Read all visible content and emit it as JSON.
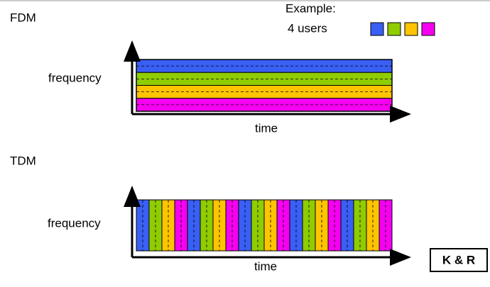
{
  "fdm": {
    "title": "FDM",
    "y_label": "frequency",
    "x_label": "time"
  },
  "tdm": {
    "title": "TDM",
    "y_label": "frequency",
    "x_label": "time"
  },
  "example": {
    "title": "Example:",
    "subtitle": "4 users",
    "colors": [
      "#3a5ff5",
      "#8fcc00",
      "#ffc400",
      "#f500f0"
    ]
  },
  "badge": "K & R"
}
